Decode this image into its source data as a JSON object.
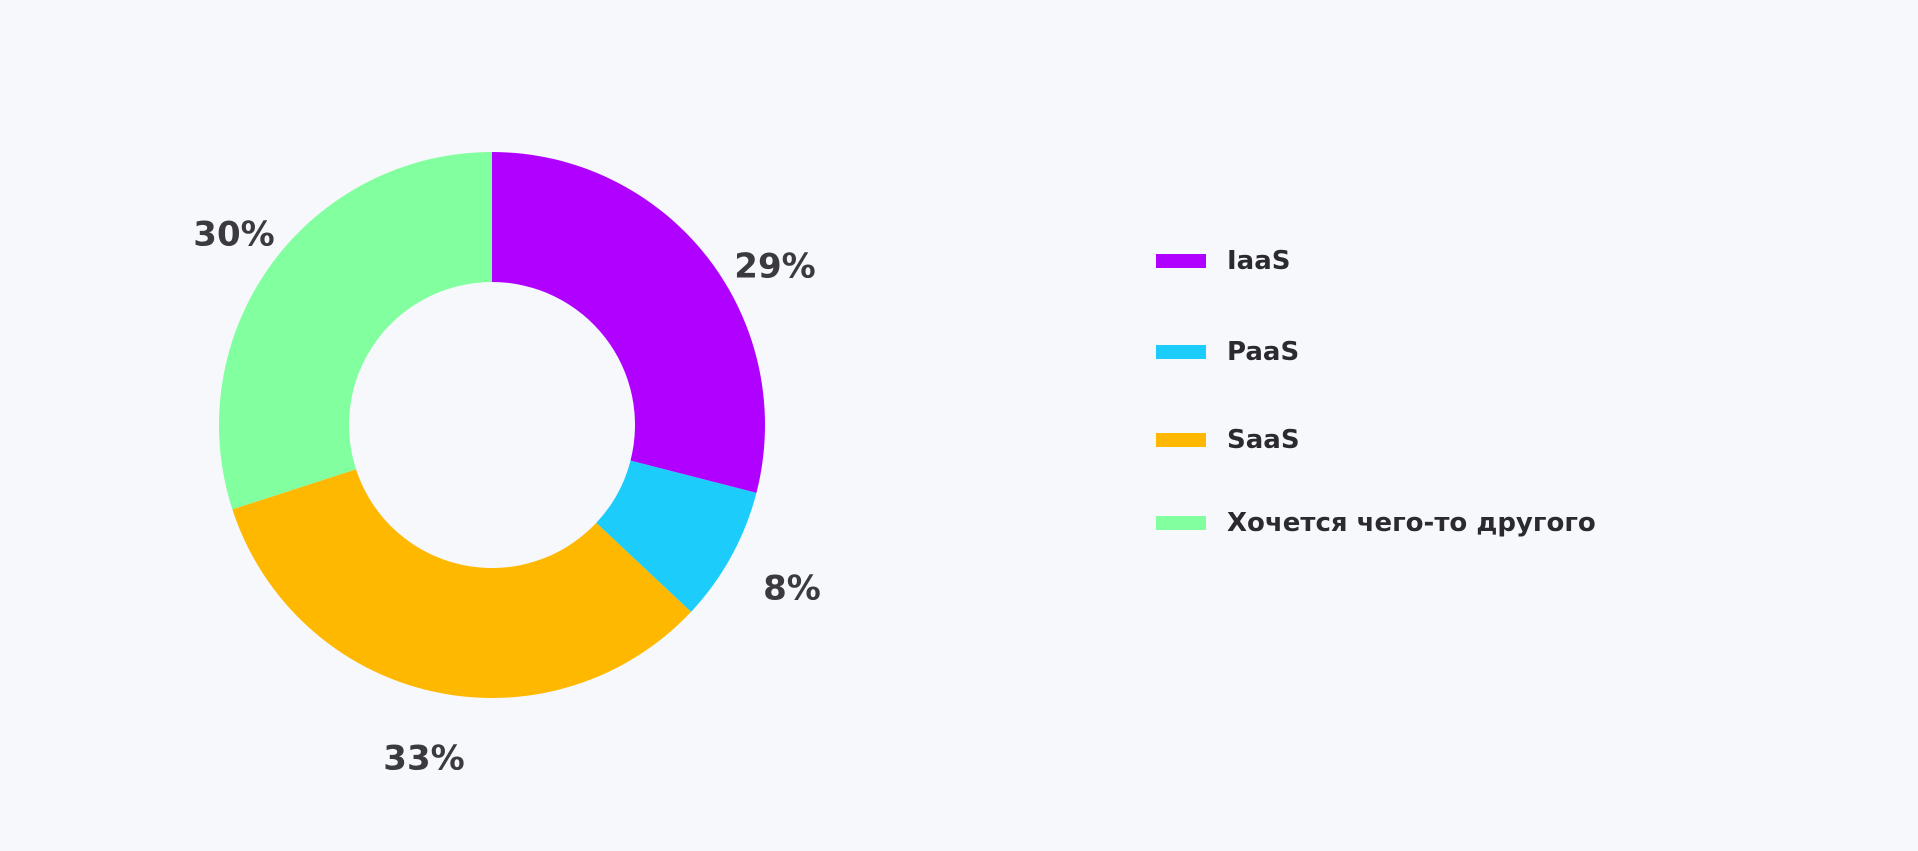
{
  "chart_data": {
    "type": "pie",
    "variant": "donut",
    "title": "",
    "categories": [
      "IaaS",
      "PaaS",
      "SaaS",
      "Хочется чего-то другого"
    ],
    "values": [
      29,
      8,
      33,
      30
    ],
    "labels": [
      "29%",
      "8%",
      "33%",
      "30%"
    ],
    "colors": [
      "#b000ff",
      "#1ccdfc",
      "#ffb800",
      "#82ff9e"
    ],
    "start_angle": "12 o'clock",
    "direction": "clockwise",
    "legend_position": "right"
  }
}
